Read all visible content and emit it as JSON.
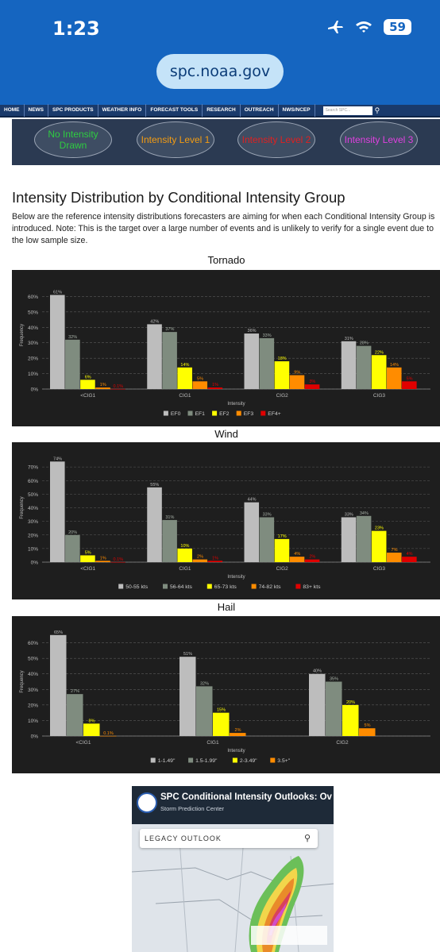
{
  "status": {
    "time": "1:23",
    "battery": "59",
    "url": "spc.noaa.gov"
  },
  "nav": {
    "items": [
      "HOME",
      "NEWS",
      "SPC PRODUCTS",
      "WEATHER INFO",
      "FORECAST TOOLS",
      "RESEARCH",
      "OUTREACH",
      "NWS/NCEP"
    ],
    "search_placeholder": "Search SPC..."
  },
  "banner": {
    "ovals": [
      {
        "label": "No Intensity Drawn",
        "color": "#2ecc40"
      },
      {
        "label": "Intensity Level 1",
        "color": "#f39c12"
      },
      {
        "label": "Intensity Level 2",
        "color": "#e02020"
      },
      {
        "label": "Intensity Level 3",
        "color": "#e040e0"
      }
    ]
  },
  "page": {
    "heading": "Intensity Distribution by Conditional Intensity Group",
    "intro": "Below are the reference intensity distributions forecasters are aiming for when each Conditional Intensity Group is introduced. Note: This is the target over a large number of events and is unlikely to verify for a single event due to the low sample size."
  },
  "chart_data": [
    {
      "type": "bar",
      "title": "Tornado",
      "xlabel": "Intensity",
      "ylabel": "Frequency",
      "ylim": [
        0,
        70
      ],
      "yticks": [
        "0%",
        "10%",
        "20%",
        "30%",
        "40%",
        "50%",
        "60%"
      ],
      "ytick_values": [
        0,
        10,
        20,
        30,
        40,
        50,
        60
      ],
      "categories": [
        "<CIG1",
        "CIG1",
        "CIG2",
        "CIG3"
      ],
      "legend_position": "bottom",
      "series": [
        {
          "name": "EF0",
          "color": "#bdbdbd",
          "values": [
            61,
            42,
            36,
            31
          ],
          "labels": [
            "61%",
            "42%",
            "36%",
            "31%"
          ]
        },
        {
          "name": "EF1",
          "color": "#7f8c7f",
          "values": [
            32,
            37,
            33,
            28
          ],
          "labels": [
            "32%",
            "37%",
            "33%",
            "28%"
          ]
        },
        {
          "name": "EF2",
          "color": "#ffff00",
          "values": [
            6,
            14,
            18,
            22
          ],
          "labels": [
            "6%",
            "14%",
            "18%",
            "22%"
          ]
        },
        {
          "name": "EF3",
          "color": "#ff8c00",
          "values": [
            1,
            5,
            9,
            14
          ],
          "labels": [
            "1%",
            "5%",
            "9%",
            "14%"
          ]
        },
        {
          "name": "EF4+",
          "color": "#e00000",
          "values": [
            0.1,
            1,
            3,
            5
          ],
          "labels": [
            "0.1%",
            "1%",
            "3%",
            "5%"
          ]
        }
      ]
    },
    {
      "type": "bar",
      "title": "Wind",
      "xlabel": "Intensity",
      "ylabel": "Frequency",
      "ylim": [
        0,
        80
      ],
      "yticks": [
        "0%",
        "10%",
        "20%",
        "30%",
        "40%",
        "50%",
        "60%",
        "70%"
      ],
      "ytick_values": [
        0,
        10,
        20,
        30,
        40,
        50,
        60,
        70
      ],
      "categories": [
        "<CIG1",
        "CIG1",
        "CIG2",
        "CIG3"
      ],
      "legend_position": "bottom",
      "series": [
        {
          "name": "50-55 kts",
          "color": "#bdbdbd",
          "values": [
            74,
            55,
            44,
            33
          ],
          "labels": [
            "74%",
            "55%",
            "44%",
            "33%"
          ]
        },
        {
          "name": "56-64 kts",
          "color": "#7f8c7f",
          "values": [
            20,
            31,
            33,
            34
          ],
          "labels": [
            "20%",
            "31%",
            "33%",
            "34%"
          ]
        },
        {
          "name": "65-73 kts",
          "color": "#ffff00",
          "values": [
            5,
            10,
            17,
            23
          ],
          "labels": [
            "5%",
            "10%",
            "17%",
            "23%"
          ]
        },
        {
          "name": "74-82 kts",
          "color": "#ff8c00",
          "values": [
            1,
            2,
            4,
            7
          ],
          "labels": [
            "1%",
            "2%",
            "4%",
            "7%"
          ]
        },
        {
          "name": "83+ kts",
          "color": "#e00000",
          "values": [
            0.1,
            1,
            2,
            4
          ],
          "labels": [
            "0.1%",
            "1%",
            "2%",
            "4%"
          ]
        }
      ]
    },
    {
      "type": "bar",
      "title": "Hail",
      "xlabel": "Intensity",
      "ylabel": "Frequency",
      "ylim": [
        0,
        70
      ],
      "yticks": [
        "0%",
        "10%",
        "20%",
        "30%",
        "40%",
        "50%",
        "60%"
      ],
      "ytick_values": [
        0,
        10,
        20,
        30,
        40,
        50,
        60
      ],
      "categories": [
        "<CIG1",
        "CIG1",
        "CIG2"
      ],
      "legend_position": "bottom",
      "series": [
        {
          "name": "1-1.49\"",
          "color": "#bdbdbd",
          "values": [
            65,
            51,
            40
          ],
          "labels": [
            "65%",
            "51%",
            "40%"
          ]
        },
        {
          "name": "1.5-1.99\"",
          "color": "#7f8c7f",
          "values": [
            27,
            32,
            35
          ],
          "labels": [
            "27%",
            "32%",
            "35%"
          ]
        },
        {
          "name": "2-3.49\"",
          "color": "#ffff00",
          "values": [
            8,
            15,
            20
          ],
          "labels": [
            "8%",
            "15%",
            "20%"
          ]
        },
        {
          "name": "3.5+\"",
          "color": "#ff8c00",
          "values": [
            0.1,
            2,
            5
          ],
          "labels": [
            "0.1%",
            "2%",
            "5%"
          ]
        }
      ]
    }
  ],
  "video": {
    "title": "SPC Conditional Intensity Outlooks: Ov",
    "subtitle": "Storm Prediction Center",
    "search_label": "LEGACY OUTLOOK"
  }
}
